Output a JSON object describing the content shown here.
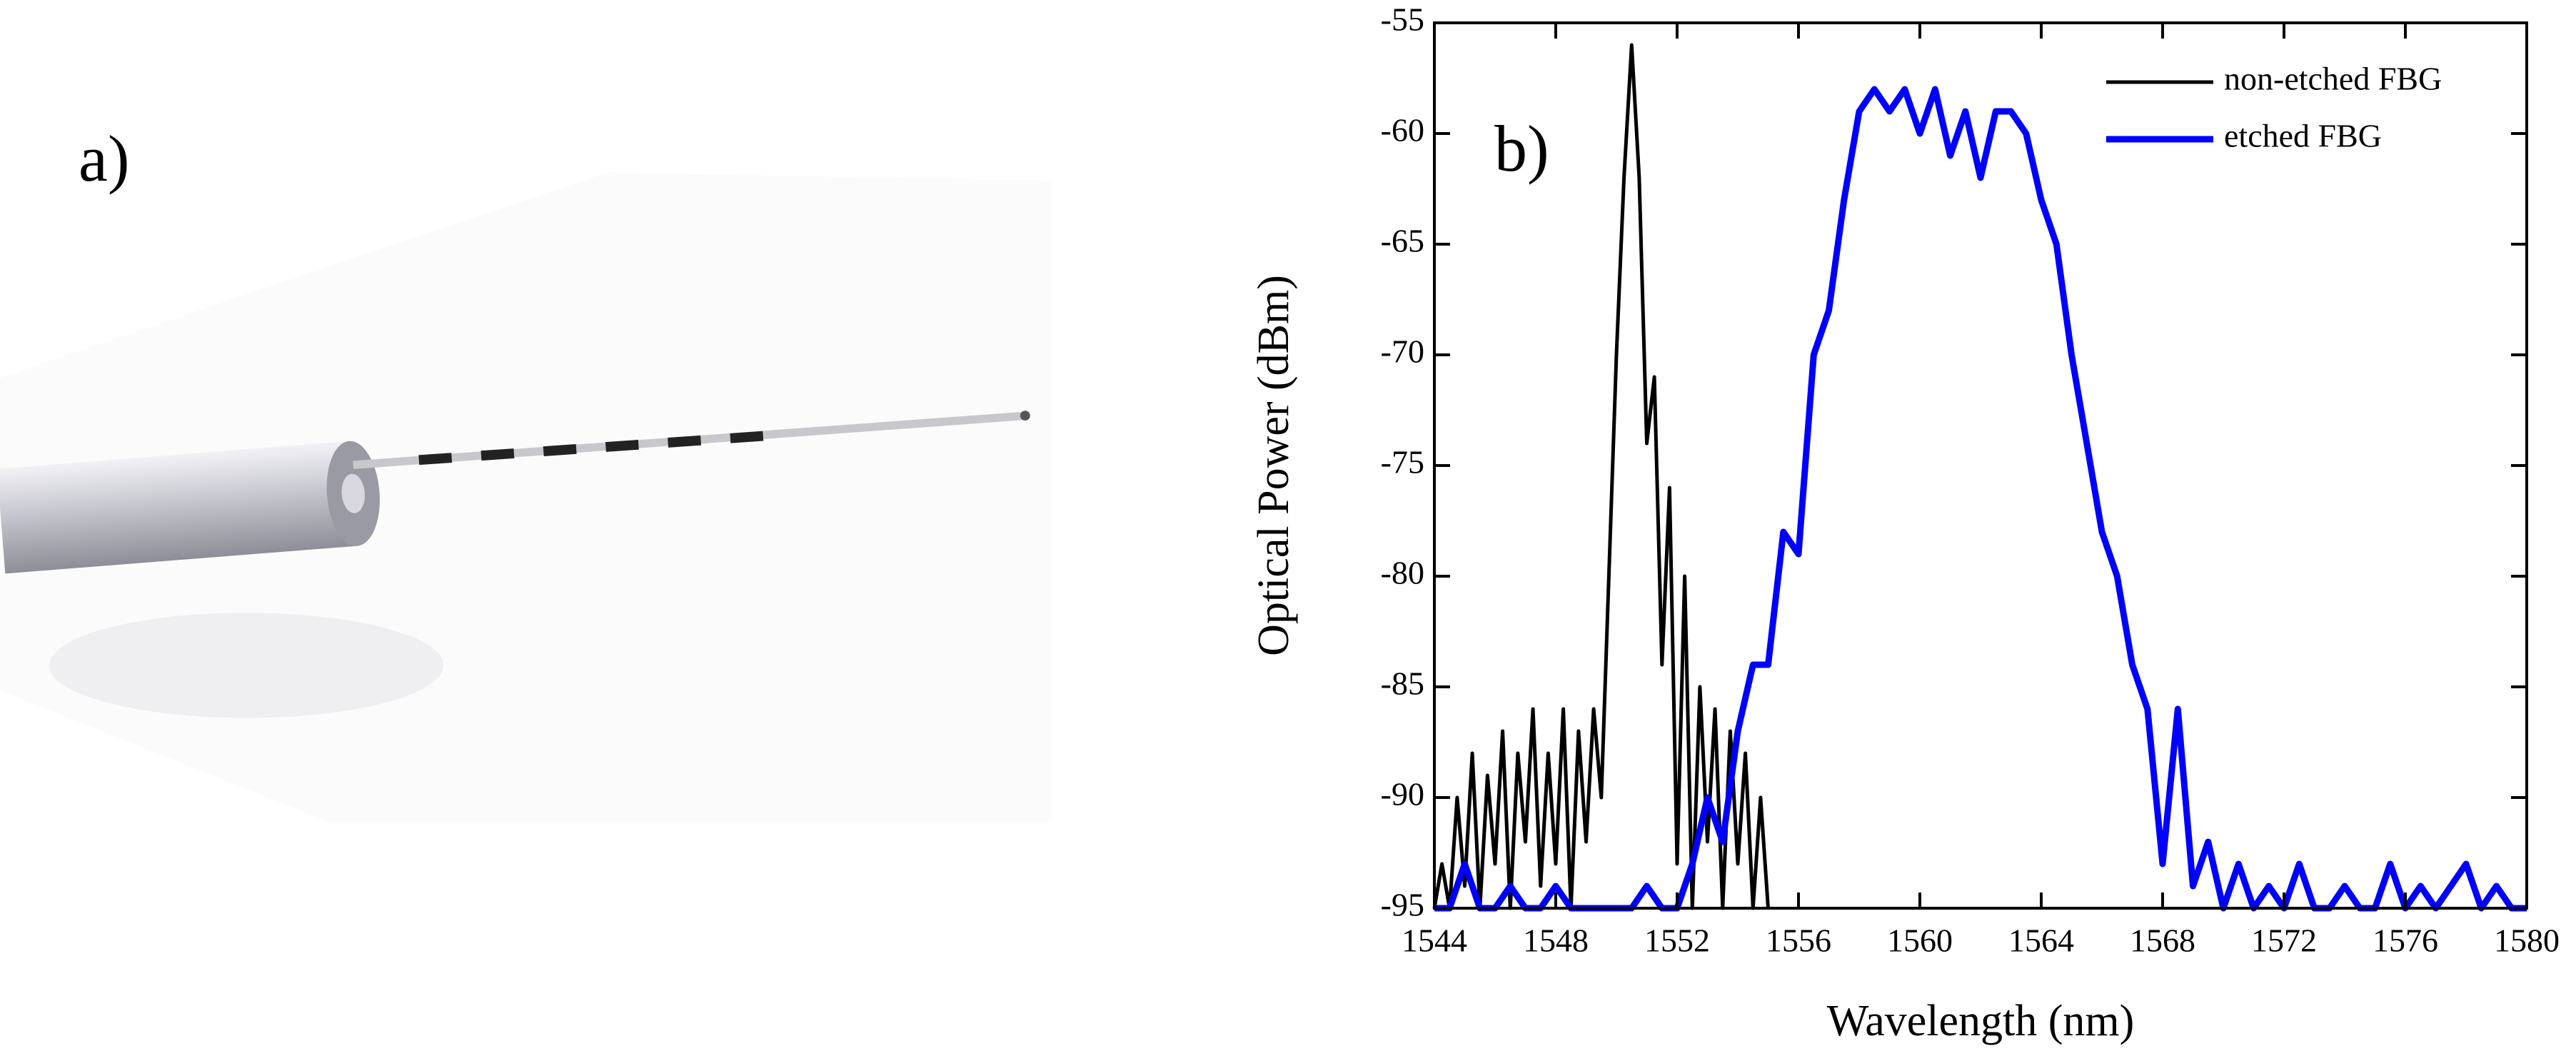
{
  "figure": {
    "panel_a_label": "a)"
  },
  "chart_data": {
    "type": "line",
    "panel_label": "b)",
    "xlabel": "Wavelength (nm)",
    "ylabel": "Optical Power (dBm)",
    "xlim": [
      1544,
      1580
    ],
    "ylim": [
      -95,
      -55
    ],
    "xticks": [
      1544,
      1548,
      1552,
      1556,
      1560,
      1564,
      1568,
      1572,
      1576,
      1580
    ],
    "yticks": [
      -95,
      -90,
      -85,
      -80,
      -75,
      -70,
      -65,
      -60,
      -55
    ],
    "legend": "upper right",
    "series": [
      {
        "name": "non-etched FBG",
        "color": "#000000",
        "x": [
          1544,
          1544.25,
          1544.5,
          1544.75,
          1545,
          1545.25,
          1545.5,
          1545.75,
          1546,
          1546.25,
          1546.5,
          1546.75,
          1547,
          1547.25,
          1547.5,
          1547.75,
          1548,
          1548.25,
          1548.5,
          1548.75,
          1549,
          1549.25,
          1549.5,
          1549.75,
          1550,
          1550.25,
          1550.5,
          1550.75,
          1551,
          1551.25,
          1551.5,
          1551.75,
          1552,
          1552.25,
          1552.5,
          1552.75,
          1553,
          1553.25,
          1553.5,
          1553.75,
          1554,
          1554.25,
          1554.5,
          1554.75,
          1555
        ],
        "values": [
          -95,
          -93,
          -95,
          -90,
          -94,
          -88,
          -95,
          -89,
          -93,
          -87,
          -95,
          -88,
          -92,
          -86,
          -94,
          -88,
          -93,
          -86,
          -95,
          -87,
          -92,
          -86,
          -90,
          -80,
          -70,
          -62,
          -56,
          -62,
          -74,
          -71,
          -84,
          -76,
          -93,
          -80,
          -95,
          -85,
          -92,
          -86,
          -95,
          -87,
          -93,
          -88,
          -95,
          -90,
          -95
        ]
      },
      {
        "name": "etched FBG",
        "color": "#0000ff",
        "x": [
          1544,
          1544.5,
          1545,
          1545.5,
          1546,
          1546.5,
          1547,
          1547.5,
          1548,
          1548.5,
          1549,
          1549.5,
          1550,
          1550.5,
          1551,
          1551.5,
          1552,
          1552.5,
          1553,
          1553.5,
          1554,
          1554.5,
          1555,
          1555.5,
          1556,
          1556.5,
          1557,
          1557.5,
          1558,
          1558.5,
          1559,
          1559.5,
          1560,
          1560.5,
          1561,
          1561.5,
          1562,
          1562.5,
          1563,
          1563.5,
          1564,
          1564.5,
          1565,
          1565.5,
          1566,
          1566.5,
          1567,
          1567.5,
          1568,
          1568.5,
          1569,
          1569.5,
          1570,
          1570.5,
          1571,
          1571.5,
          1572,
          1572.5,
          1573,
          1573.5,
          1574,
          1574.5,
          1575,
          1575.5,
          1576,
          1576.5,
          1577,
          1577.5,
          1578,
          1578.5,
          1579,
          1579.5,
          1580
        ],
        "values": [
          -95,
          -95,
          -93,
          -95,
          -95,
          -94,
          -95,
          -95,
          -94,
          -95,
          -95,
          -95,
          -95,
          -95,
          -94,
          -95,
          -95,
          -93,
          -90,
          -92,
          -87,
          -84,
          -84,
          -78,
          -79,
          -70,
          -68,
          -63,
          -59,
          -58,
          -59,
          -58,
          -60,
          -58,
          -61,
          -59,
          -62,
          -59,
          -59,
          -60,
          -63,
          -65,
          -70,
          -74,
          -78,
          -80,
          -84,
          -86,
          -93,
          -86,
          -94,
          -92,
          -95,
          -93,
          -95,
          -94,
          -95,
          -93,
          -95,
          -95,
          -94,
          -95,
          -95,
          -93,
          -95,
          -94,
          -95,
          -94,
          -93,
          -95,
          -94,
          -95,
          -95
        ]
      }
    ]
  }
}
